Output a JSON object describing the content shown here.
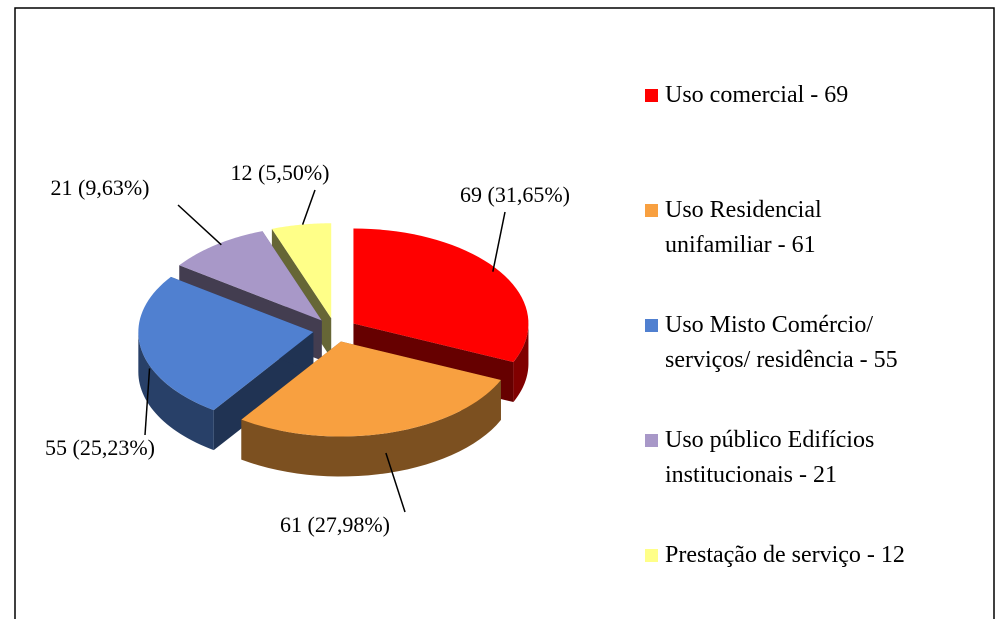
{
  "chart_data": {
    "type": "pie3d",
    "categories": [
      "Uso comercial - 69",
      "Uso Residencial unifamiliar - 61",
      "Uso Misto Comércio/ serviços/ residência - 55",
      "Uso público Edifícios institucionais - 21",
      "Prestação de serviço - 12"
    ],
    "values": [
      69,
      61,
      55,
      21,
      12
    ],
    "value_labels": [
      "69 (31,65%)",
      "61 (27,98%)",
      "55 (25,23%)",
      "21 (9,63%)",
      "12 (5,50%)"
    ],
    "colors": [
      "#ff0000",
      "#f8a040",
      "#5080d0",
      "#a898c8",
      "#ffff88"
    ],
    "legend": "right"
  }
}
